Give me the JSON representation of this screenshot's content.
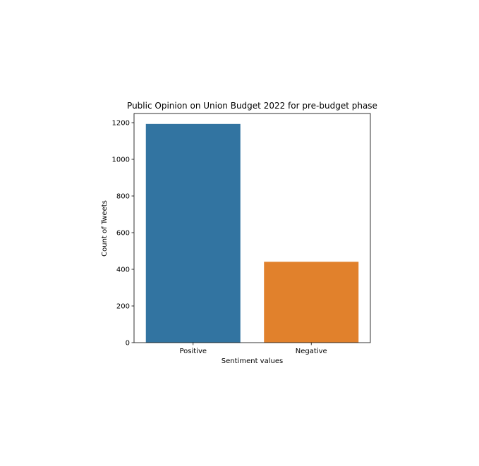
{
  "chart_data": {
    "type": "bar",
    "title": "Public Opinion on Union Budget 2022 for pre-budget phase",
    "xlabel": "Sentiment values",
    "ylabel": "Count of Tweets",
    "categories": [
      "Positive",
      "Negative"
    ],
    "values": [
      1193,
      441
    ],
    "colors": [
      "#3274a1",
      "#e1812c"
    ],
    "ylim": [
      0,
      1250
    ],
    "yticks": [
      0,
      200,
      400,
      600,
      800,
      1000,
      1200
    ],
    "grid": false,
    "legend": "none"
  }
}
